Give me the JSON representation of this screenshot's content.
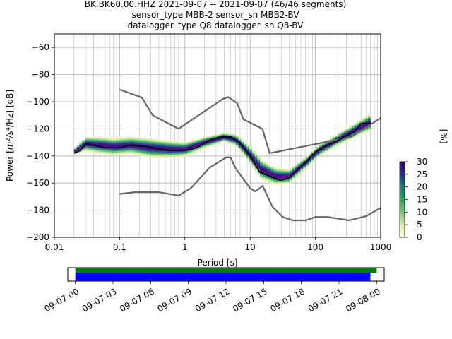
{
  "title_lines": [
    "BK.BK60.00.HHZ   2021-09-07 -- 2021-09-07  (46/46 segments)",
    "sensor_type MBB-2 sensor_sn MBB2-BV",
    "datalogger_type Q8 datalogger_sn Q8-BV"
  ],
  "colors": {
    "model_lines": "#666666",
    "mode_line": "#000000",
    "grid": "#b0b0b0",
    "data_bar": "#0000ff",
    "gap_bar": "#008000",
    "colormap": [
      "#ffffe5",
      "#d9f0a3",
      "#78c679",
      "#2ca25f",
      "#1d7e7e",
      "#253494",
      "#3f007d"
    ]
  },
  "chart_data": {
    "type": "heatmap",
    "xlabel": "Period [s]",
    "ylabel": "Power [$m^2/s^4/Hz$] [dB]",
    "ylabel_parts": {
      "main": "Power [",
      "m": "m",
      "exp2": "2",
      "s": "/s",
      "exp4": "4",
      "rest": "/Hz] [dB]"
    },
    "x_scale": "log",
    "xlim": [
      0.01,
      1000
    ],
    "ylim": [
      -200,
      -50
    ],
    "x_ticks": [
      0.01,
      0.1,
      1,
      10,
      100,
      1000
    ],
    "x_tick_labels": [
      "0.01",
      "0.1",
      "1",
      "10",
      "100",
      "1000"
    ],
    "y_ticks": [
      -200,
      -180,
      -160,
      -140,
      -120,
      -100,
      -80,
      -60
    ],
    "y_tick_labels": [
      "−200",
      "−180",
      "−160",
      "−140",
      "−120",
      "−100",
      "−80",
      "−60"
    ],
    "grid": true,
    "colorbar": {
      "label": "[%]",
      "range": [
        0,
        30
      ],
      "ticks": [
        0,
        5,
        10,
        15,
        20,
        25,
        30
      ],
      "tick_labels": [
        "0",
        "5",
        "10",
        "15",
        "20",
        "25",
        "30"
      ]
    },
    "series": [
      {
        "role": "noise model high",
        "points": [
          [
            0.1,
            -91
          ],
          [
            0.22,
            -97
          ],
          [
            0.32,
            -110
          ],
          [
            0.8,
            -120
          ],
          [
            3.8,
            -98
          ],
          [
            4.6,
            -96.5
          ],
          [
            6.3,
            -101
          ],
          [
            7.9,
            -113
          ],
          [
            15.4,
            -120
          ],
          [
            20,
            -138
          ],
          [
            354.8,
            -126
          ],
          [
            1000,
            -112
          ]
        ]
      },
      {
        "role": "noise model low",
        "points": [
          [
            0.1,
            -168
          ],
          [
            0.17,
            -166.7
          ],
          [
            0.4,
            -166.7
          ],
          [
            0.8,
            -169.2
          ],
          [
            1.24,
            -163.7
          ],
          [
            2.4,
            -148.6
          ],
          [
            4.3,
            -141.1
          ],
          [
            5,
            -141.1
          ],
          [
            6,
            -149.2
          ],
          [
            10,
            -163.8
          ],
          [
            12,
            -166.2
          ],
          [
            15.6,
            -162.1
          ],
          [
            21.9,
            -177.5
          ],
          [
            31.6,
            -185
          ],
          [
            45,
            -187.5
          ],
          [
            70,
            -187.5
          ],
          [
            101,
            -185
          ],
          [
            154,
            -185
          ],
          [
            328,
            -187.5
          ],
          [
            600,
            -184.4
          ],
          [
            1000,
            -178.3
          ]
        ]
      },
      {
        "role": "mode",
        "points": [
          [
            0.02,
            -138
          ],
          [
            0.025,
            -136
          ],
          [
            0.03,
            -131
          ],
          [
            0.04,
            -132
          ],
          [
            0.06,
            -134
          ],
          [
            0.1,
            -134
          ],
          [
            0.15,
            -132
          ],
          [
            0.25,
            -133
          ],
          [
            0.4,
            -135
          ],
          [
            0.6,
            -136
          ],
          [
            1,
            -136
          ],
          [
            1.5,
            -134
          ],
          [
            2.5,
            -128
          ],
          [
            3.5,
            -126
          ],
          [
            5,
            -126
          ],
          [
            7,
            -130
          ],
          [
            10,
            -140
          ],
          [
            14,
            -152
          ],
          [
            20,
            -155
          ],
          [
            25,
            -157
          ],
          [
            30,
            -158
          ],
          [
            40,
            -156
          ],
          [
            60,
            -148
          ],
          [
            80,
            -142
          ],
          [
            100,
            -137
          ],
          [
            150,
            -132
          ],
          [
            200,
            -130
          ],
          [
            250,
            -127
          ],
          [
            300,
            -125
          ],
          [
            400,
            -122
          ],
          [
            500,
            -116
          ],
          [
            700,
            -116
          ]
        ]
      }
    ],
    "heatmap_band": [
      {
        "x": 0.02,
        "center": -137,
        "spread": 2
      },
      {
        "x": 0.03,
        "center": -131,
        "spread": 5
      },
      {
        "x": 0.05,
        "center": -132,
        "spread": 6
      },
      {
        "x": 0.08,
        "center": -133,
        "spread": 6
      },
      {
        "x": 0.15,
        "center": -132,
        "spread": 6
      },
      {
        "x": 0.3,
        "center": -134,
        "spread": 7
      },
      {
        "x": 0.6,
        "center": -135,
        "spread": 6
      },
      {
        "x": 1,
        "center": -135,
        "spread": 5
      },
      {
        "x": 2,
        "center": -130,
        "spread": 4
      },
      {
        "x": 4,
        "center": -126,
        "spread": 3
      },
      {
        "x": 6,
        "center": -128,
        "spread": 4
      },
      {
        "x": 10,
        "center": -139,
        "spread": 6
      },
      {
        "x": 15,
        "center": -150,
        "spread": 7
      },
      {
        "x": 25,
        "center": -155,
        "spread": 6
      },
      {
        "x": 40,
        "center": -155,
        "spread": 5
      },
      {
        "x": 70,
        "center": -145,
        "spread": 4
      },
      {
        "x": 120,
        "center": -135,
        "spread": 4
      },
      {
        "x": 200,
        "center": -129,
        "spread": 4
      },
      {
        "x": 400,
        "center": -121,
        "spread": 5
      },
      {
        "x": 700,
        "center": -115,
        "spread": 6
      }
    ]
  },
  "timeline": {
    "tick_labels": [
      "09-07 00",
      "09-07 03",
      "09-07 06",
      "09-07 09",
      "09-07 12",
      "09-07 15",
      "09-07 18",
      "09-07 21",
      "09-08 00"
    ],
    "axis_range_hours": [
      -0.6,
      24.6
    ],
    "data_coverage_hours": [
      0,
      23.5
    ],
    "gap_free_hours": [
      0,
      24
    ]
  }
}
